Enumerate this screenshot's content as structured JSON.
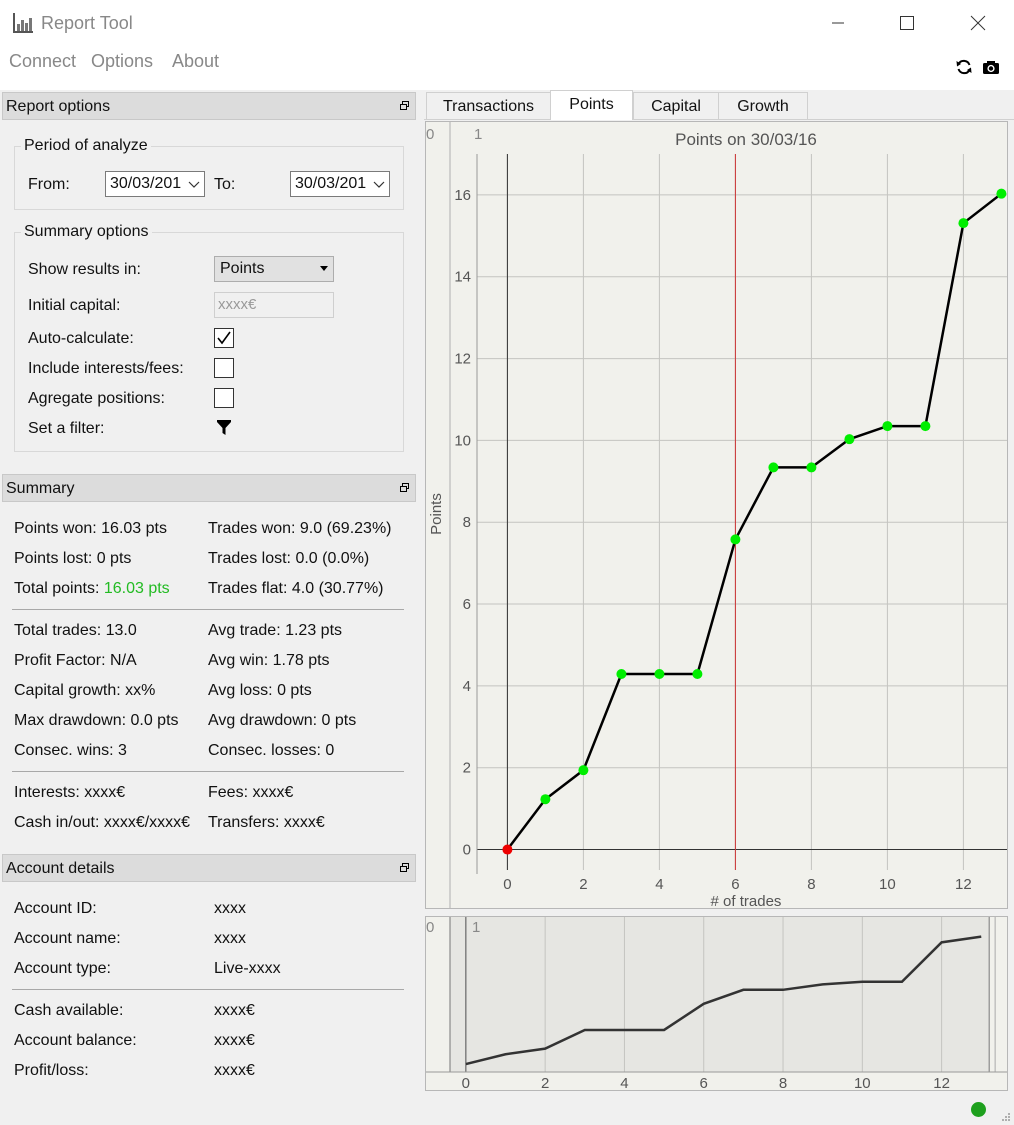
{
  "window": {
    "title": "Report Tool"
  },
  "menu": {
    "connect": "Connect",
    "options": "Options",
    "about": "About"
  },
  "toolbar": {
    "refresh_icon": "refresh-icon",
    "camera_icon": "camera-icon"
  },
  "report_options": {
    "header": "Report options",
    "period": {
      "title": "Period of analyze",
      "from_label": "From:",
      "from_value": "30/03/201",
      "to_label": "To:",
      "to_value": "30/03/201"
    },
    "summary_opts": {
      "title": "Summary options",
      "show_results_label": "Show results in:",
      "show_results_value": "Points",
      "initial_capital_label": "Initial capital:",
      "initial_capital_value": "xxxx€",
      "auto_calc_label": "Auto-calculate:",
      "auto_calc_checked": true,
      "include_fees_label": "Include interests/fees:",
      "include_fees_checked": false,
      "aggregate_label": "Agregate positions:",
      "aggregate_checked": false,
      "filter_label": "Set a filter:"
    }
  },
  "summary": {
    "header": "Summary",
    "points_won": "Points won: 16.03 pts",
    "points_lost": "Points lost: 0 pts",
    "total_points_label": "Total points: ",
    "total_points_value": "16.03 pts",
    "trades_won": "Trades won: 9.0 (69.23%)",
    "trades_lost": "Trades lost: 0.0 (0.0%)",
    "trades_flat": "Trades flat: 4.0 (30.77%)",
    "total_trades": "Total trades: 13.0",
    "profit_factor": "Profit Factor: N/A",
    "capital_growth": "Capital growth: xx%",
    "max_drawdown": "Max drawdown: 0.0 pts",
    "consec_wins": "Consec. wins: 3",
    "avg_trade": "Avg trade: 1.23 pts",
    "avg_win": "Avg win: 1.78 pts",
    "avg_loss": "Avg loss: 0 pts",
    "avg_drawdown": "Avg drawdown: 0 pts",
    "consec_losses": "Consec. losses: 0",
    "interests": "Interests: xxxx€",
    "cash_in_out": "Cash in/out: xxxx€/xxxx€",
    "fees": "Fees: xxxx€",
    "transfers": "Transfers: xxxx€"
  },
  "account": {
    "header": "Account details",
    "id_label": "Account ID:",
    "id_value": "xxxx",
    "name_label": "Account name:",
    "name_value": "xxxx",
    "type_label": "Account type:",
    "type_value": "Live-xxxx",
    "cash_label": "Cash available:",
    "cash_value": "xxxx€",
    "balance_label": "Account balance:",
    "balance_value": "xxxx€",
    "pl_label": "Profit/loss:",
    "pl_value": "xxxx€"
  },
  "tabs": {
    "transactions": "Transactions",
    "points": "Points",
    "capital": "Capital",
    "growth": "Growth"
  },
  "chart_data": {
    "type": "line",
    "title": "Points on 30/03/16",
    "xlabel": "# of trades",
    "ylabel": "Points",
    "x": [
      0,
      1,
      2,
      3,
      4,
      5,
      6,
      7,
      8,
      9,
      10,
      11,
      12,
      13
    ],
    "values": [
      0,
      1.23,
      1.94,
      4.29,
      4.29,
      4.29,
      7.58,
      9.34,
      9.34,
      10.03,
      10.35,
      10.35,
      15.31,
      16.03
    ],
    "xlim": [
      -0.8,
      13.2
    ],
    "ylim": [
      -0.5,
      17
    ],
    "xticks": [
      0,
      2,
      4,
      6,
      8,
      10,
      12
    ],
    "yticks": [
      0,
      2,
      4,
      6,
      8,
      10,
      12,
      14,
      16
    ],
    "marker_line_x": 6,
    "point_color": "#00ee00",
    "first_point_color": "#ee0000",
    "line_color": "#000000",
    "marker_line_color": "#cc3333",
    "grid": true,
    "corner_labels": [
      "0",
      "1"
    ]
  }
}
